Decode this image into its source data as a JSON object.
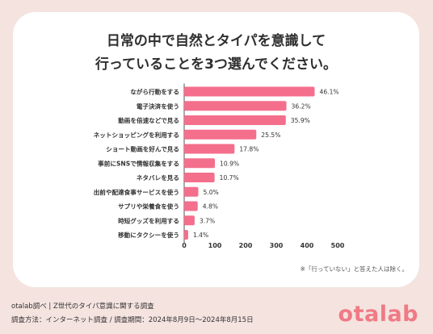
{
  "title_line1": "日常の中で自然とタイパを意識して",
  "title_line2": "行っていることを3つ選んでください。",
  "note": "※「行っていない」と答えた人は除く。",
  "footer": {
    "line1": "otalab調べ | Z世代のタイパ意識に関する調査",
    "line2": "調査方法：インターネット調査 / 調査期間：2024年8月9日〜2024年8月15日"
  },
  "logo": "otalab",
  "colors": {
    "bar": "#f46f8c",
    "background": "#f4e3df"
  },
  "chart_data": {
    "type": "bar",
    "orientation": "horizontal",
    "categories": [
      "ながら行動をする",
      "電子決済を使う",
      "動画を倍速などで見る",
      "ネットショッピングを利用する",
      "ショート動画を好んで見る",
      "事前にSNSで情報収集をする",
      "ネタバレを見る",
      "出前や配達食事サービスを使う",
      "サプリや栄養食を使う",
      "時短グッズを利用する",
      "移動にタクシーを使う"
    ],
    "values": [
      46.1,
      36.2,
      35.9,
      25.5,
      17.8,
      10.9,
      10.7,
      5.0,
      4.8,
      3.7,
      1.4
    ],
    "value_labels": [
      "46.1%",
      "36.2%",
      "35.9%",
      "25.5%",
      "17.8%",
      "10.9%",
      "10.7%",
      "5.0%",
      "4.8%",
      "3.7%",
      "1.4%"
    ],
    "counts": [
      425,
      333,
      331,
      235,
      164,
      100,
      99,
      46,
      44,
      34,
      13
    ],
    "xticks": [
      "0",
      "100",
      "200",
      "300",
      "400",
      "500"
    ],
    "xlim": [
      0,
      500
    ],
    "grid": false,
    "legend": "none"
  }
}
